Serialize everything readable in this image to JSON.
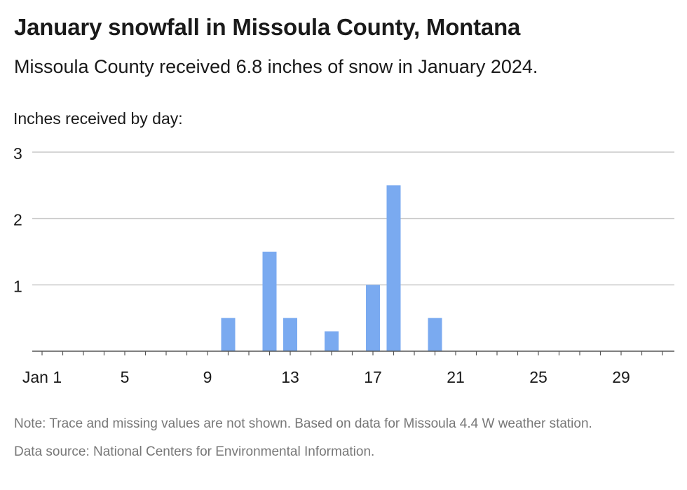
{
  "header": {
    "title": "January snowfall in Missoula County, Montana",
    "subtitle": "Missoula County received 6.8 inches of snow in January 2024."
  },
  "chart_data": {
    "type": "bar",
    "ylabel": "Inches received by day:",
    "xlabel": "",
    "x": [
      10,
      12,
      13,
      15,
      17,
      18,
      20
    ],
    "values": [
      0.5,
      1.5,
      0.5,
      0.3,
      1.0,
      2.5,
      0.5
    ],
    "xlim": [
      1,
      31
    ],
    "ylim": [
      0,
      3
    ],
    "yticks": [
      1,
      2,
      3
    ],
    "xticks": [
      1,
      5,
      9,
      13,
      17,
      21,
      25,
      29
    ],
    "xtick_labels": [
      "Jan 1",
      "5",
      "9",
      "13",
      "17",
      "21",
      "25",
      "29"
    ],
    "grid": true,
    "legend": "none",
    "bar_color": "#7aaaf0",
    "grid_color": "#c8c8c8",
    "axis_color": "#555555"
  },
  "footer": {
    "note": "Note: Trace and missing values are not shown. Based on data for Missoula 4.4 W weather station.",
    "source": "Data source: National Centers for Environmental Information."
  }
}
